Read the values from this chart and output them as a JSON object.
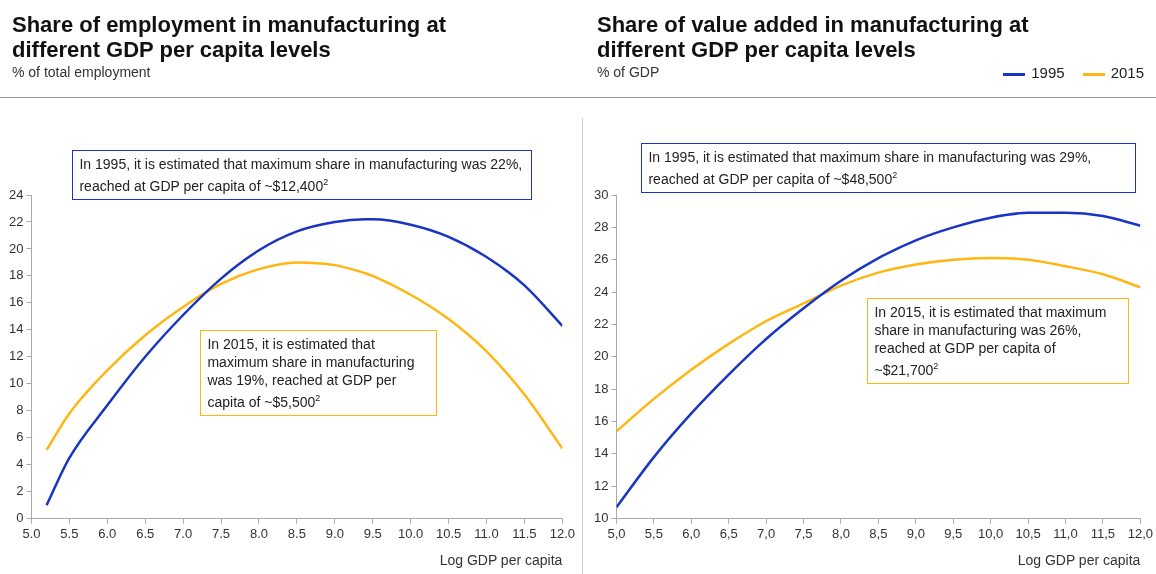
{
  "chart_data": [
    {
      "type": "line",
      "title": "Share of employment in manufacturing at different GDP per capita levels",
      "subtitle": "% of total employment",
      "xlabel": "Log GDP per capita",
      "xlim": [
        5,
        12
      ],
      "xticks": [
        {
          "value": 5,
          "label": "5.0"
        },
        {
          "value": 5.5,
          "label": "5.5"
        },
        {
          "value": 6,
          "label": "6.0"
        },
        {
          "value": 6.5,
          "label": "6.5"
        },
        {
          "value": 7,
          "label": "7.0"
        },
        {
          "value": 7.5,
          "label": "7.5"
        },
        {
          "value": 8,
          "label": "8.0"
        },
        {
          "value": 8.5,
          "label": "8.5"
        },
        {
          "value": 9,
          "label": "9.0"
        },
        {
          "value": 9.5,
          "label": "9.5"
        },
        {
          "value": 10,
          "label": "10.0"
        },
        {
          "value": 10.5,
          "label": "10.5"
        },
        {
          "value": 11,
          "label": "11.0"
        },
        {
          "value": 11.5,
          "label": "11.5"
        },
        {
          "value": 12,
          "label": "12.0"
        }
      ],
      "ylim": [
        0,
        24
      ],
      "yticks": [
        0,
        2,
        4,
        6,
        8,
        10,
        12,
        14,
        16,
        18,
        20,
        22,
        24
      ],
      "grid": false,
      "legend": false,
      "marker": "none",
      "line_style": "solid",
      "x": [
        5.2,
        5.5,
        6.0,
        6.5,
        7.0,
        7.5,
        8.0,
        8.5,
        9.0,
        9.4,
        9.5,
        10.0,
        10.5,
        11.0,
        11.5,
        12.0
      ],
      "series": [
        {
          "color": "#1a35c4",
          "values": [
            1.0,
            4.5,
            8.4,
            12.0,
            15.1,
            17.8,
            19.9,
            21.3,
            22.0,
            22.2,
            22.2,
            21.8,
            20.9,
            19.4,
            17.3,
            14.3
          ]
        },
        {
          "color": "#ffb612",
          "values": [
            5.1,
            7.8,
            11.0,
            13.6,
            15.7,
            17.4,
            18.5,
            19.0,
            18.8,
            18.2,
            18.0,
            16.6,
            14.8,
            12.4,
            9.2,
            5.2
          ]
        }
      ],
      "annotations": [
        "In 1995, it is estimated that maximum share in manufacturing was 22%, reached at GDP per capita of ~$12,400$^{2}$",
        "In 2015, it is estimated that maximum share in manufacturing was 19%, reached at GDP per capita of ~$5,500$^{2}$"
      ]
    },
    {
      "type": "line",
      "title": "Share of value added in manufacturing at different GDP per capita levels",
      "subtitle": "% of GDP",
      "xlabel": "Log GDP per capita",
      "xlim": [
        5,
        12
      ],
      "xticks": [
        {
          "value": 5,
          "label": "5,0"
        },
        {
          "value": 5.5,
          "label": "5,5"
        },
        {
          "value": 6,
          "label": "6,0"
        },
        {
          "value": 6.5,
          "label": "6,5"
        },
        {
          "value": 7,
          "label": "7,0"
        },
        {
          "value": 7.5,
          "label": "7,5"
        },
        {
          "value": 8,
          "label": "8,0"
        },
        {
          "value": 8.5,
          "label": "8,5"
        },
        {
          "value": 9,
          "label": "9,0"
        },
        {
          "value": 9.5,
          "label": "9,5"
        },
        {
          "value": 10,
          "label": "10,0"
        },
        {
          "value": 10.5,
          "label": "10,5"
        },
        {
          "value": 11,
          "label": "11,0"
        },
        {
          "value": 11.5,
          "label": "11,5"
        },
        {
          "value": 12,
          "label": "12,0"
        }
      ],
      "ylim": [
        10,
        30
      ],
      "yticks": [
        10,
        12,
        14,
        16,
        18,
        20,
        22,
        24,
        26,
        28,
        30
      ],
      "grid": false,
      "legend": "top right",
      "marker": "none",
      "line_style": "solid",
      "x": [
        5.0,
        5.5,
        6.0,
        6.5,
        7.0,
        7.5,
        8.0,
        8.5,
        9.0,
        9.5,
        10.0,
        10.5,
        11.0,
        11.5,
        12.0
      ],
      "series": [
        {
          "name": "1995",
          "color": "#1a35c4",
          "values": [
            10.7,
            13.8,
            16.5,
            18.9,
            21.1,
            23.0,
            24.7,
            26.1,
            27.2,
            28.0,
            28.6,
            28.9,
            28.9,
            28.7,
            28.1
          ]
        },
        {
          "name": "2015",
          "color": "#ffb612",
          "values": [
            15.4,
            17.4,
            19.2,
            20.8,
            22.2,
            23.3,
            24.4,
            25.2,
            25.7,
            26.0,
            26.1,
            26.0,
            25.6,
            25.1,
            24.3
          ]
        }
      ],
      "annotations": [
        "In 1995, it is estimated that maximum share in manufacturing was 29%, reached at GDP per capita of ~$48,500$^{2}$",
        "In 2015, it is estimated that maximum share in manufacturing was 26%, reached at GDP per capita of ~$21,700$^{2}$"
      ]
    }
  ]
}
